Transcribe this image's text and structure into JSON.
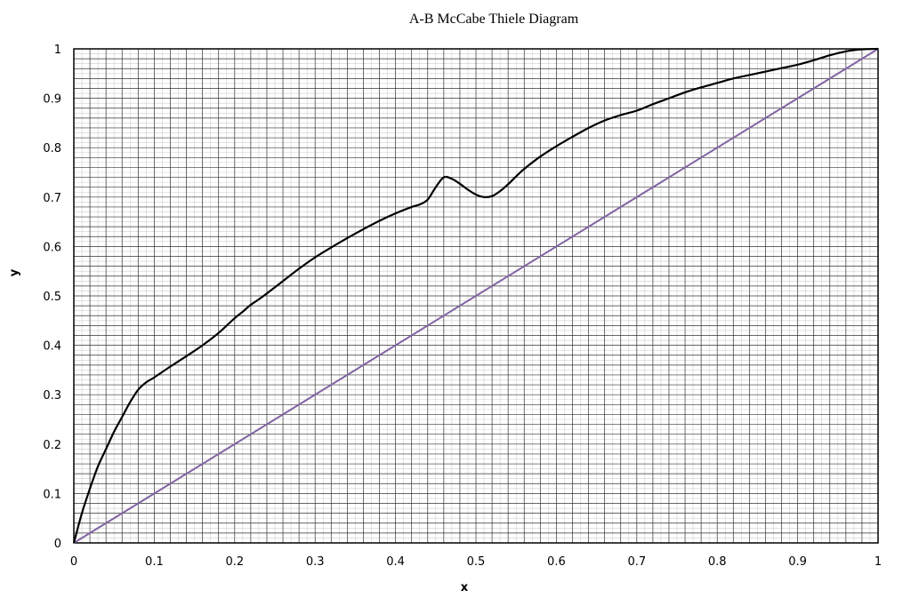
{
  "chart_data": {
    "type": "line",
    "title": "A-B McCabe Thiele Diagram",
    "xlabel": "x",
    "ylabel": "y",
    "xlim": [
      0,
      1
    ],
    "ylim": [
      0,
      1
    ],
    "grid": true,
    "x_ticks": [
      "0",
      "0.1",
      "0.2",
      "0.3",
      "0.4",
      "0.5",
      "0.6",
      "0.7",
      "0.8",
      "0.9",
      "1"
    ],
    "y_ticks": [
      "0",
      "0.1",
      "0.2",
      "0.3",
      "0.4",
      "0.5",
      "0.6",
      "0.7",
      "0.8",
      "0.9",
      "1"
    ],
    "colors": {
      "equilibrium": "#000000",
      "diagonal": "#8064a2",
      "grid_major": "#333333",
      "grid_minor": "#cfcfcf"
    },
    "series": [
      {
        "x": [
          0,
          0.01,
          0.02,
          0.03,
          0.04,
          0.05,
          0.06,
          0.07,
          0.08,
          0.09,
          0.1,
          0.12,
          0.14,
          0.16,
          0.18,
          0.2,
          0.21,
          0.22,
          0.23,
          0.24,
          0.26,
          0.28,
          0.3,
          0.32,
          0.34,
          0.36,
          0.38,
          0.4,
          0.42,
          0.43,
          0.44,
          0.45,
          0.46,
          0.47,
          0.48,
          0.49,
          0.5,
          0.51,
          0.52,
          0.53,
          0.54,
          0.55,
          0.56,
          0.58,
          0.6,
          0.62,
          0.64,
          0.66,
          0.68,
          0.7,
          0.72,
          0.74,
          0.76,
          0.78,
          0.8,
          0.82,
          0.84,
          0.86,
          0.88,
          0.9,
          0.92,
          0.94,
          0.96,
          0.98,
          1.0
        ],
        "y": [
          0,
          0.06,
          0.11,
          0.155,
          0.19,
          0.225,
          0.255,
          0.285,
          0.31,
          0.325,
          0.335,
          0.357,
          0.378,
          0.4,
          0.425,
          0.455,
          0.468,
          0.482,
          0.493,
          0.505,
          0.53,
          0.555,
          0.578,
          0.598,
          0.617,
          0.635,
          0.652,
          0.667,
          0.68,
          0.685,
          0.695,
          0.72,
          0.74,
          0.737,
          0.727,
          0.715,
          0.705,
          0.7,
          0.702,
          0.712,
          0.726,
          0.742,
          0.757,
          0.782,
          0.803,
          0.822,
          0.84,
          0.855,
          0.866,
          0.875,
          0.888,
          0.9,
          0.912,
          0.922,
          0.931,
          0.94,
          0.947,
          0.954,
          0.961,
          0.968,
          0.977,
          0.987,
          0.995,
          0.999,
          1.0
        ]
      },
      {
        "x": [
          0,
          1
        ],
        "y": [
          0,
          1
        ]
      }
    ]
  }
}
